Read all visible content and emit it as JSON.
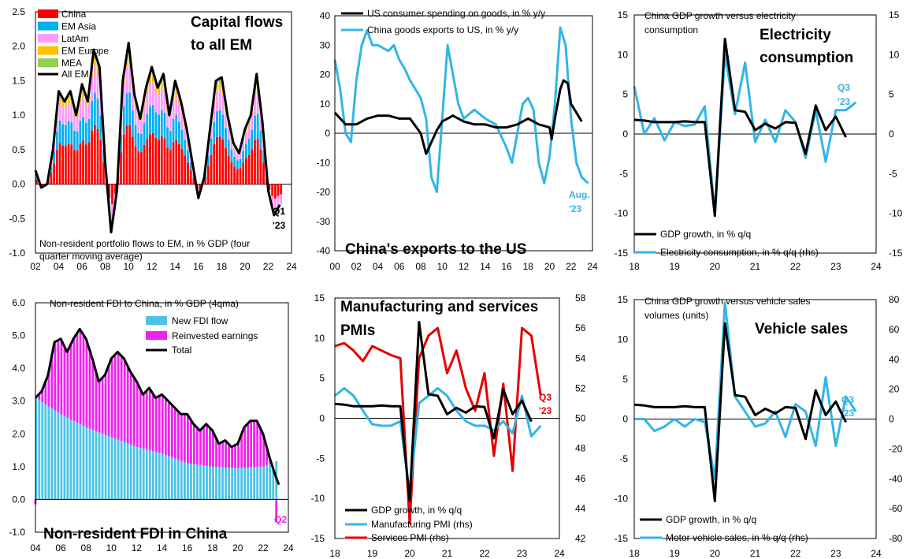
{
  "colors": {
    "china": "#ff0000",
    "em_asia": "#00b0f0",
    "latam": "#ff99ff",
    "em_europe": "#ffc000",
    "mea": "#92d050",
    "black": "#000000",
    "cyan": "#33b5e5",
    "red": "#e60000",
    "new_fdi": "#4cc3e6",
    "reinvested": "#ee22ee"
  },
  "chart_data": [
    {
      "id": "capital_flows",
      "type": "bar",
      "big_title": [
        "Capital flows",
        "to all EM"
      ],
      "note": [
        "Non-resident portfolio flows to EM, in % GDP (four",
        "quarter moving average)"
      ],
      "end_label": [
        "Q1",
        "'23"
      ],
      "x_ticks": [
        "02",
        "04",
        "06",
        "08",
        "10",
        "12",
        "14",
        "16",
        "18",
        "20",
        "22",
        "24"
      ],
      "y_ticks": [
        "2.5",
        "2.0",
        "1.5",
        "1.0",
        "0.5",
        "0.0",
        "-0.5",
        "-1.0"
      ],
      "ylim": [
        -1.0,
        2.5
      ],
      "xlim": [
        2002,
        2024
      ],
      "legend": [
        "China",
        "EM Asia",
        "LatAm",
        "EM Europe",
        "MEA",
        "All EM"
      ],
      "series": [
        {
          "name": "All EM",
          "x": [
            2002,
            2002.5,
            2003,
            2003.5,
            2004,
            2004.5,
            2005,
            2005.5,
            2006,
            2006.5,
            2007,
            2007.5,
            2008,
            2008.5,
            2009,
            2009.5,
            2010,
            2010.5,
            2011,
            2011.5,
            2012,
            2012.5,
            2013,
            2013.5,
            2014,
            2014.5,
            2015,
            2015.5,
            2016,
            2016.5,
            2017,
            2017.5,
            2018,
            2018.5,
            2019,
            2019.5,
            2020,
            2020.5,
            2021,
            2021.5,
            2022,
            2022.5,
            2023
          ],
          "y": [
            0.2,
            -0.05,
            0.0,
            0.5,
            1.35,
            1.2,
            1.35,
            1.0,
            1.45,
            1.2,
            1.95,
            1.7,
            0.3,
            -0.7,
            -0.1,
            1.5,
            2.05,
            1.3,
            0.95,
            1.4,
            1.7,
            1.4,
            1.6,
            1.0,
            1.5,
            1.2,
            0.8,
            0.3,
            -0.2,
            0.1,
            0.8,
            1.5,
            1.55,
            1.0,
            0.6,
            0.45,
            0.8,
            1.0,
            1.6,
            0.9,
            -0.1,
            -0.45,
            -0.3
          ]
        }
      ]
    },
    {
      "id": "exports_us",
      "type": "line",
      "big_title": "China's exports to the US",
      "x_ticks": [
        "00",
        "02",
        "04",
        "06",
        "08",
        "10",
        "12",
        "14",
        "16",
        "18",
        "20",
        "22",
        "24"
      ],
      "y_ticks": [
        "40",
        "30",
        "20",
        "10",
        "0",
        "-10",
        "-20",
        "-30",
        "-40"
      ],
      "ylim": [
        -40,
        40
      ],
      "xlim": [
        2000,
        2024
      ],
      "end_label": [
        "Aug.",
        "'23"
      ],
      "series": [
        {
          "name": "US consumer spending on goods, in % y/y",
          "x": [
            2000,
            2001,
            2002,
            2003,
            2004,
            2005,
            2006,
            2007,
            2008,
            2008.5,
            2009,
            2009.5,
            2010,
            2011,
            2012,
            2013,
            2014,
            2015,
            2016,
            2017,
            2018,
            2019,
            2020,
            2020.2,
            2020.5,
            2021,
            2021.3,
            2021.7,
            2022,
            2022.5,
            2023
          ],
          "y": [
            7,
            3,
            3,
            5,
            6,
            6,
            5,
            5,
            0,
            -7,
            -3,
            1,
            4,
            6,
            4,
            3,
            3,
            2,
            2,
            3,
            5,
            3,
            2,
            -2,
            5,
            15,
            18,
            17,
            10,
            7,
            4
          ]
        },
        {
          "name": "China goods exports to US, in % y/y",
          "x": [
            2000,
            2000.5,
            2001,
            2001.5,
            2002,
            2002.5,
            2003,
            2003.5,
            2004,
            2005,
            2005.5,
            2006,
            2006.5,
            2007,
            2007.5,
            2008,
            2008.5,
            2009,
            2009.5,
            2010,
            2010.5,
            2011,
            2011.5,
            2012,
            2013,
            2014,
            2015,
            2016,
            2016.5,
            2017,
            2017.5,
            2018,
            2018.5,
            2019,
            2019.5,
            2020,
            2020.5,
            2021,
            2021.5,
            2022,
            2022.5,
            2023,
            2023.6
          ],
          "y": [
            25,
            15,
            0,
            -3,
            18,
            30,
            35,
            30,
            30,
            28,
            30,
            25,
            22,
            18,
            15,
            12,
            5,
            -15,
            -20,
            5,
            30,
            20,
            10,
            5,
            8,
            5,
            3,
            -5,
            -10,
            0,
            10,
            12,
            8,
            -10,
            -17,
            -8,
            10,
            36,
            30,
            5,
            -10,
            -15,
            -17
          ]
        }
      ]
    },
    {
      "id": "electricity",
      "type": "line",
      "big_title": [
        "Electricity",
        "consumption"
      ],
      "note": [
        "China GDP growth versus electricity",
        "consumption"
      ],
      "x_ticks": [
        "18",
        "19",
        "20",
        "21",
        "22",
        "23",
        "24"
      ],
      "y_ticks": [
        "15",
        "10",
        "5",
        "0",
        "-5",
        "-10",
        "-15"
      ],
      "ylim": [
        -15,
        15
      ],
      "xlim": [
        2018,
        2024
      ],
      "end_label": [
        "Q3",
        "'23"
      ],
      "series": [
        {
          "name": "GDP growth, in % q/q",
          "x": [
            2018,
            2018.25,
            2018.5,
            2018.75,
            2019,
            2019.25,
            2019.5,
            2019.75,
            2020,
            2020.25,
            2020.5,
            2020.75,
            2021,
            2021.25,
            2021.5,
            2021.75,
            2022,
            2022.25,
            2022.5,
            2022.75,
            2023,
            2023.25
          ],
          "y": [
            1.8,
            1.7,
            1.5,
            1.5,
            1.5,
            1.6,
            1.5,
            1.5,
            -10.3,
            12,
            3,
            2.8,
            0.5,
            1.3,
            0.7,
            1.5,
            1.4,
            -2.5,
            3.6,
            0.5,
            2.2,
            -0.4
          ]
        },
        {
          "name": "Electricity consumption, in % q/q (rhs)",
          "x": [
            2018,
            2018.25,
            2018.5,
            2018.75,
            2019,
            2019.25,
            2019.5,
            2019.75,
            2020,
            2020.25,
            2020.5,
            2020.75,
            2021,
            2021.25,
            2021.5,
            2021.75,
            2022,
            2022.25,
            2022.5,
            2022.75,
            2023,
            2023.25,
            2023.5
          ],
          "y": [
            6,
            0,
            2,
            -0.8,
            1.5,
            1,
            1.2,
            3.5,
            -10,
            10,
            2.5,
            9,
            -1,
            1.8,
            -1,
            3,
            1.5,
            -3,
            3,
            -3.5,
            3,
            3,
            4
          ]
        }
      ]
    },
    {
      "id": "fdi",
      "type": "bar",
      "big_title": "Non-resident FDI in China",
      "note": "Non-resident FDI to China, in % GDP (4qma)",
      "x_ticks": [
        "04",
        "06",
        "08",
        "10",
        "12",
        "14",
        "16",
        "18",
        "20",
        "22",
        "24"
      ],
      "y_ticks": [
        "6.0",
        "5.0",
        "4.0",
        "3.0",
        "2.0",
        "1.0",
        "0.0",
        "-1.0"
      ],
      "ylim": [
        -1.0,
        6.0
      ],
      "xlim": [
        2004,
        2024
      ],
      "end_label": "Q2",
      "legend": [
        "New FDI flow",
        "Reinvested earnings",
        "Total"
      ],
      "series": [
        {
          "name": "Total",
          "x": [
            2004,
            2004.5,
            2005,
            2005.5,
            2006,
            2006.5,
            2007,
            2007.5,
            2008,
            2008.5,
            2009,
            2009.5,
            2010,
            2010.5,
            2011,
            2011.5,
            2012,
            2012.5,
            2013,
            2013.5,
            2014,
            2014.5,
            2015,
            2015.5,
            2016,
            2016.5,
            2017,
            2017.5,
            2018,
            2018.5,
            2019,
            2019.5,
            2020,
            2020.5,
            2021,
            2021.5,
            2022,
            2022.5,
            2023,
            2023.25
          ],
          "y": [
            3.1,
            3.3,
            3.8,
            4.8,
            4.9,
            4.5,
            4.9,
            5.2,
            4.9,
            4.3,
            3.6,
            3.8,
            4.3,
            4.5,
            4.3,
            3.9,
            3.6,
            3.2,
            3.4,
            3.1,
            3.2,
            3.0,
            2.8,
            2.6,
            2.6,
            2.3,
            2.1,
            2.3,
            2.1,
            1.7,
            1.8,
            1.6,
            1.7,
            2.2,
            2.4,
            2.4,
            2.0,
            1.3,
            0.7,
            0.45
          ]
        },
        {
          "name": "New FDI flow",
          "x": [
            2004,
            2006,
            2008,
            2010,
            2012,
            2014,
            2016,
            2018,
            2020,
            2022,
            2023.25
          ],
          "y": [
            3.1,
            2.6,
            2.2,
            1.9,
            1.6,
            1.4,
            1.1,
            1.0,
            0.95,
            1.0,
            1.2
          ]
        }
      ]
    },
    {
      "id": "pmi",
      "type": "line",
      "big_title": [
        "Manufacturing and services",
        "PMIs"
      ],
      "x_ticks": [
        "18",
        "19",
        "20",
        "21",
        "22",
        "23",
        "24"
      ],
      "y_ticks": [
        "15",
        "10",
        "5",
        "0",
        "-5",
        "-10",
        "-15"
      ],
      "y2_ticks": [
        "58",
        "56",
        "54",
        "52",
        "50",
        "48",
        "46",
        "44",
        "42"
      ],
      "ylim": [
        -15,
        15
      ],
      "y2lim": [
        42,
        58
      ],
      "xlim": [
        2018,
        2024
      ],
      "end_label": [
        "Q3",
        "'23"
      ],
      "series": [
        {
          "name": "GDP growth, in % q/q",
          "x": [
            2018,
            2018.25,
            2018.5,
            2018.75,
            2019,
            2019.25,
            2019.5,
            2019.75,
            2020,
            2020.25,
            2020.5,
            2020.75,
            2021,
            2021.25,
            2021.5,
            2021.75,
            2022,
            2022.25,
            2022.5,
            2022.75,
            2023,
            2023.25
          ],
          "y": [
            1.8,
            1.7,
            1.5,
            1.5,
            1.5,
            1.6,
            1.5,
            1.5,
            -10.3,
            12,
            3,
            2.8,
            0.5,
            1.3,
            0.7,
            1.5,
            1.4,
            -2.5,
            3.6,
            0.5,
            2.2,
            -0.4
          ]
        },
        {
          "name": "Manufacturing PMI (rhs)",
          "x": [
            2018,
            2018.25,
            2018.5,
            2018.75,
            2019,
            2019.25,
            2019.5,
            2019.75,
            2020,
            2020.25,
            2020.5,
            2020.75,
            2021,
            2021.25,
            2021.5,
            2021.75,
            2022,
            2022.25,
            2022.5,
            2022.75,
            2023,
            2023.25,
            2023.5
          ],
          "y": [
            51.5,
            52,
            51.5,
            50.5,
            49.6,
            49.5,
            49.5,
            49.8,
            45,
            51,
            51.5,
            52,
            51.5,
            50.5,
            49.8,
            49.5,
            49.5,
            49.2,
            49.8,
            49,
            51.5,
            48.8,
            49.5
          ]
        },
        {
          "name": "Services PMI (rhs)",
          "x": [
            2018,
            2018.25,
            2018.5,
            2018.75,
            2019,
            2019.25,
            2019.5,
            2019.75,
            2020,
            2020.25,
            2020.5,
            2020.75,
            2021,
            2021.25,
            2021.5,
            2021.75,
            2022,
            2022.25,
            2022.5,
            2022.75,
            2023,
            2023.25,
            2023.5
          ],
          "y": [
            54.8,
            55,
            54.5,
            53.8,
            54.8,
            54.5,
            54.2,
            54,
            43,
            54,
            55.5,
            56,
            53,
            54.5,
            52,
            50.5,
            53,
            47.5,
            52.3,
            46.5,
            56,
            55.5,
            51.5
          ]
        }
      ]
    },
    {
      "id": "vehicles",
      "type": "line",
      "big_title": "Vehicle sales",
      "note": [
        "China GDP growth versus vehicle sales",
        "volumes (units)"
      ],
      "x_ticks": [
        "18",
        "19",
        "20",
        "21",
        "22",
        "23",
        "24"
      ],
      "y_ticks": [
        "15",
        "10",
        "5",
        "0",
        "-5",
        "-10",
        "-15"
      ],
      "y2_ticks": [
        "80",
        "60",
        "40",
        "20",
        "0",
        "-20",
        "-40",
        "-60",
        "-80"
      ],
      "ylim": [
        -15,
        15
      ],
      "y2lim": [
        -80,
        80
      ],
      "xlim": [
        2018,
        2024
      ],
      "end_label": [
        "Q3",
        "'23"
      ],
      "series": [
        {
          "name": "GDP growth, in % q/q",
          "x": [
            2018,
            2018.25,
            2018.5,
            2018.75,
            2019,
            2019.25,
            2019.5,
            2019.75,
            2020,
            2020.25,
            2020.5,
            2020.75,
            2021,
            2021.25,
            2021.5,
            2021.75,
            2022,
            2022.25,
            2022.5,
            2022.75,
            2023,
            2023.25
          ],
          "y": [
            1.8,
            1.7,
            1.5,
            1.5,
            1.5,
            1.6,
            1.5,
            1.5,
            -10.3,
            12,
            3,
            2.8,
            0.5,
            1.3,
            0.7,
            1.5,
            1.4,
            -2.5,
            3.6,
            0.5,
            2.2,
            -0.4
          ]
        },
        {
          "name": "Motor vehicle sales, in % q/q (rhs)",
          "x": [
            2018,
            2018.25,
            2018.5,
            2018.75,
            2019,
            2019.25,
            2019.5,
            2019.75,
            2020,
            2020.25,
            2020.5,
            2020.75,
            2021,
            2021.25,
            2021.5,
            2021.75,
            2022,
            2022.25,
            2022.5,
            2022.75,
            2023,
            2023.25,
            2023.5
          ],
          "y": [
            0,
            0,
            -8,
            -5,
            0,
            -5,
            0,
            -2,
            -40,
            78,
            15,
            5,
            -5,
            -3,
            5,
            -12,
            10,
            5,
            -18,
            28,
            -18,
            15,
            5
          ]
        }
      ]
    }
  ]
}
